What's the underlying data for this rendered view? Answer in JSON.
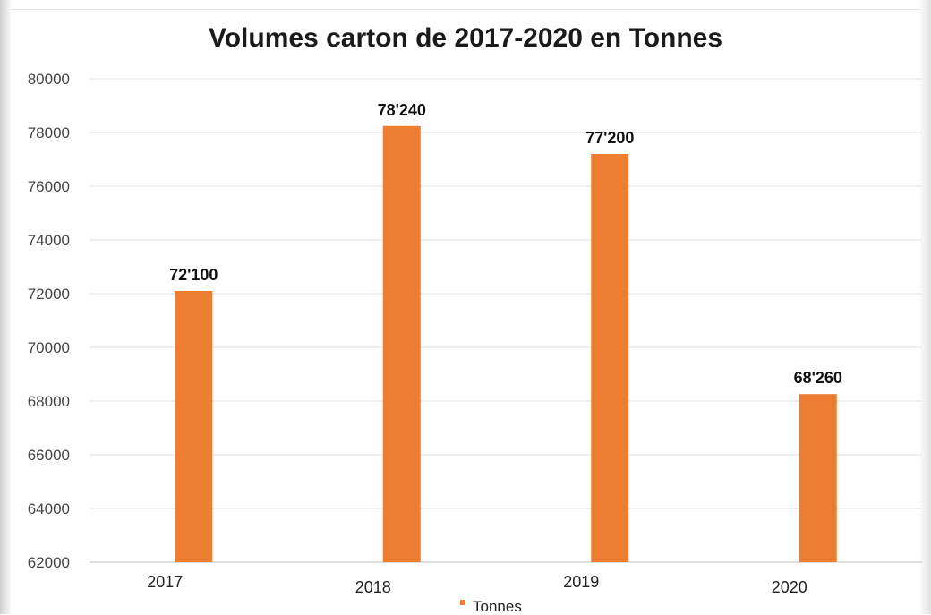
{
  "chart_data": {
    "type": "bar",
    "title": "Volumes carton de 2017-2020 en Tonnes",
    "categories": [
      "2017",
      "2018",
      "2019",
      "2020"
    ],
    "series": [
      {
        "name": "Tonnes",
        "values": [
          72100,
          78240,
          77200,
          68260
        ],
        "data_labels": [
          "72'100",
          "78'240",
          "77'200",
          "68'260"
        ],
        "color": "#ED7D31"
      }
    ],
    "ylim": [
      62000,
      80000
    ],
    "yticks": [
      "62000",
      "64000",
      "66000",
      "68000",
      "70000",
      "72000",
      "74000",
      "76000",
      "78000",
      "80000"
    ],
    "grid": true,
    "legend": "bottom"
  }
}
